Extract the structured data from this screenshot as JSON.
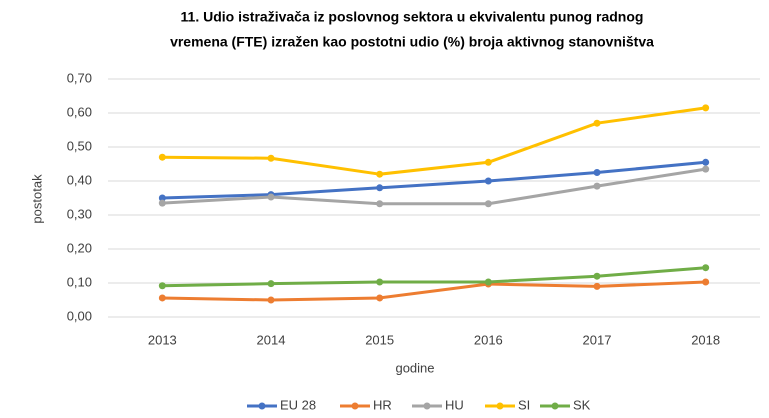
{
  "chart_data": {
    "type": "line",
    "title": [
      "11. Udio istraživača iz poslovnog sektora u ekvivalentu punog radnog",
      "vremena (FTE) izražen kao postotni udio (%) broja aktivnog stanovništva"
    ],
    "x_label": "godine",
    "y_label": "postotak",
    "categories": [
      "2013",
      "2014",
      "2015",
      "2016",
      "2017",
      "2018"
    ],
    "series": [
      {
        "name": "EU 28",
        "color": "#4472c4",
        "values": [
          0.35,
          0.36,
          0.38,
          0.4,
          0.425,
          0.455
        ]
      },
      {
        "name": "HR",
        "color": "#ed7d31",
        "values": [
          0.056,
          0.05,
          0.056,
          0.097,
          0.09,
          0.103
        ]
      },
      {
        "name": "HU",
        "color": "#a5a5a5",
        "values": [
          0.335,
          0.353,
          0.333,
          0.333,
          0.385,
          0.435
        ]
      },
      {
        "name": "SI",
        "color": "#ffc000",
        "values": [
          0.47,
          0.467,
          0.42,
          0.455,
          0.57,
          0.615
        ]
      },
      {
        "name": "SK",
        "color": "#70ad47",
        "values": [
          0.092,
          0.098,
          0.103,
          0.103,
          0.12,
          0.145
        ]
      }
    ],
    "ylim": [
      0,
      0.7
    ],
    "yticks": [
      {
        "value": 0,
        "label": "0,00"
      },
      {
        "value": 0.1,
        "label": "0,10"
      },
      {
        "value": 0.2,
        "label": "0,20"
      },
      {
        "value": 0.3,
        "label": "0,30"
      },
      {
        "value": 0.4,
        "label": "0,40"
      },
      {
        "value": 0.5,
        "label": "0,50"
      },
      {
        "value": 0.6,
        "label": "0,60"
      },
      {
        "value": 0.7,
        "label": "0,70"
      }
    ],
    "grid": true,
    "legend": "bottom"
  }
}
